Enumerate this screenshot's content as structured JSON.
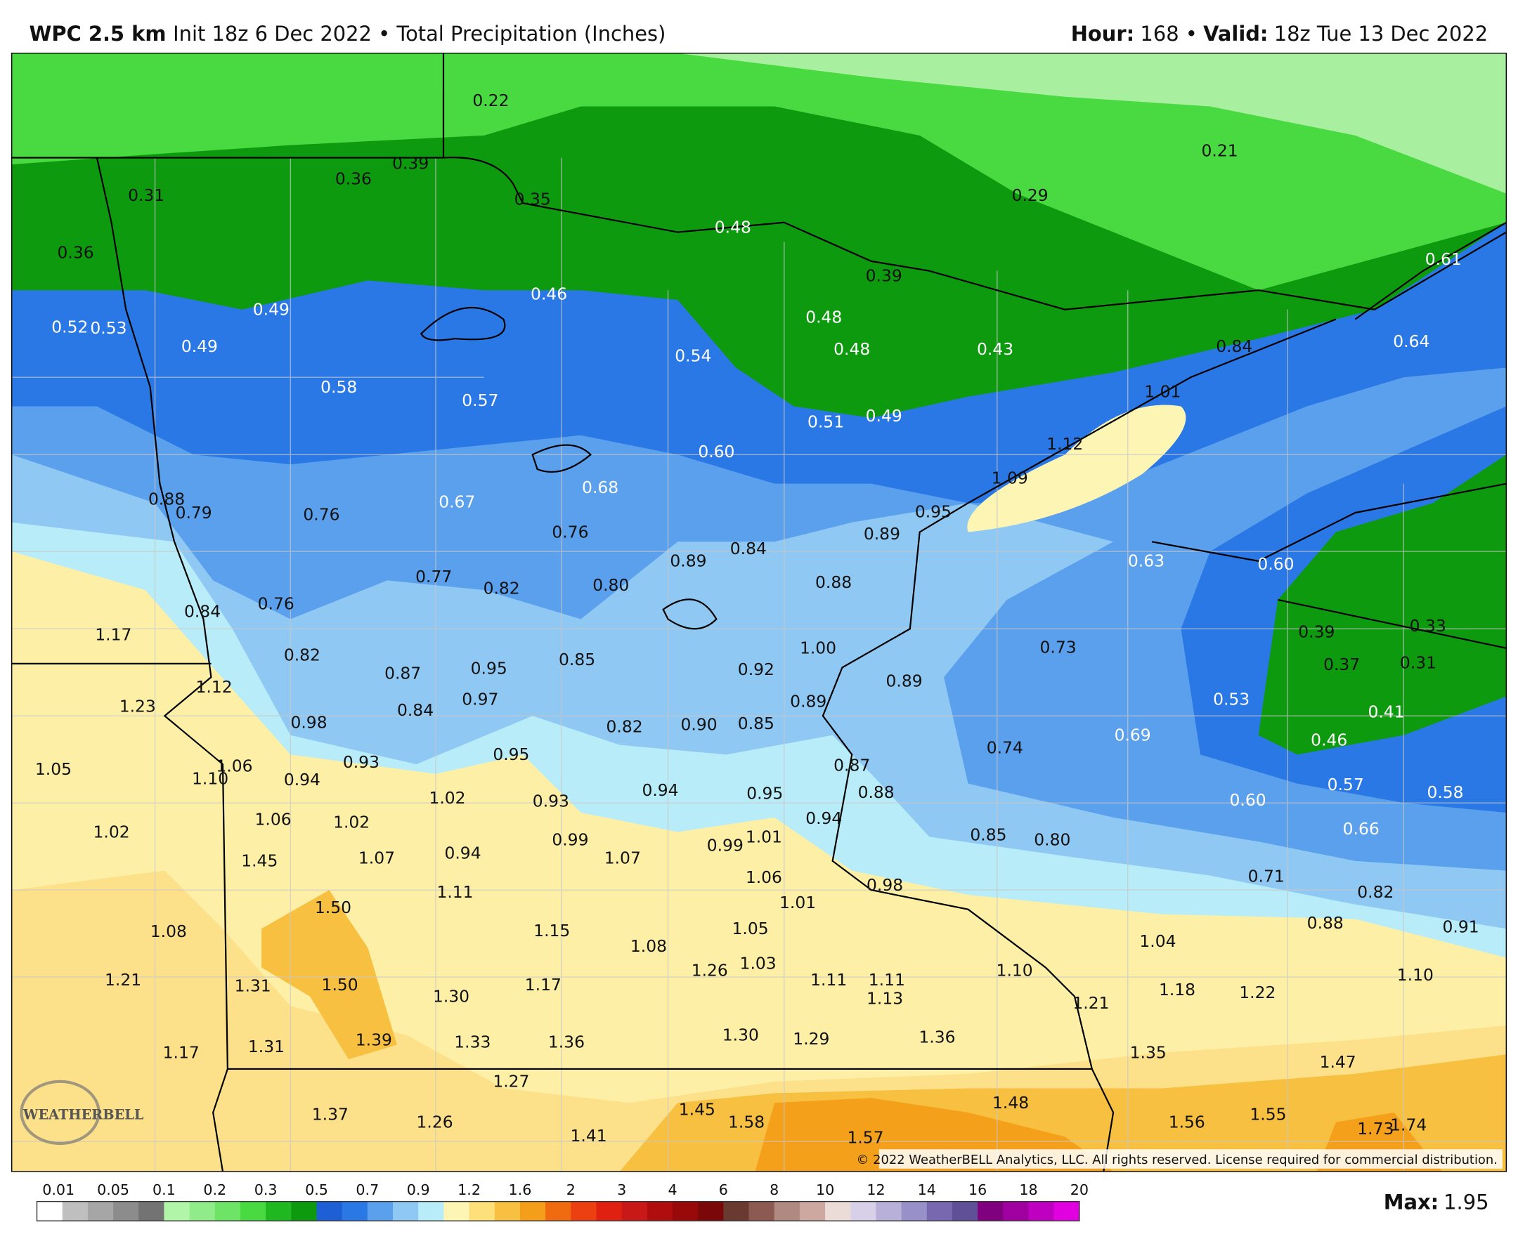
{
  "header": {
    "model": "WPC 2.5 km",
    "init": "Init 18z 6 Dec 2022 • Total Precipitation (Inches)",
    "hour_label": "Hour:",
    "hour": "168 •",
    "valid_label": "Valid:",
    "valid": "18z Tue 13 Dec 2022"
  },
  "map": {
    "labels": [
      "0.22",
      "0.39",
      "0.36",
      "0.31",
      "0.35",
      "0.36",
      "0.48",
      "0.21",
      "0.29",
      "0.39",
      "0.46",
      "0.49",
      "0.52",
      "0.53",
      "0.49",
      "0.48",
      "0.48",
      "0.43",
      "0.61",
      "0.64",
      "0.84",
      "0.54",
      "0.58",
      "0.57",
      "1.01",
      "0.51",
      "0.49",
      "0.60",
      "1.12",
      "1.09",
      "0.68",
      "0.67",
      "0.88",
      "0.79",
      "0.76",
      "0.95",
      "0.89",
      "0.76",
      "0.84",
      "0.89",
      "0.63",
      "0.60",
      "0.77",
      "0.82",
      "0.80",
      "0.88",
      "0.84",
      "0.76",
      "1.17",
      "0.39",
      "0.33",
      "1.00",
      "0.73",
      "0.37",
      "0.31",
      "0.82",
      "0.85",
      "0.87",
      "0.95",
      "0.92",
      "0.89",
      "1.12",
      "1.23",
      "0.97",
      "0.84",
      "0.89",
      "0.53",
      "0.41",
      "0.98",
      "0.82",
      "0.90",
      "0.85",
      "0.69",
      "0.74",
      "0.46",
      "1.05",
      "1.06",
      "1.10",
      "0.94",
      "0.93",
      "0.95",
      "0.87",
      "0.57",
      "0.58",
      "0.60",
      "1.02",
      "0.93",
      "0.94",
      "0.95",
      "0.88",
      "1.06",
      "1.02",
      "0.94",
      "0.66",
      "1.02",
      "0.85",
      "0.80",
      "0.99",
      "1.01",
      "0.99",
      "1.45",
      "1.07",
      "0.94",
      "1.07",
      "0.71",
      "1.06",
      "0.98",
      "0.82",
      "1.11",
      "1.01",
      "1.50",
      "1.08",
      "1.15",
      "1.05",
      "0.88",
      "0.91",
      "1.08",
      "1.04",
      "1.26",
      "1.03",
      "1.10",
      "1.21",
      "1.31",
      "1.50",
      "1.30",
      "1.17",
      "1.11",
      "1.11",
      "1.13",
      "1.18",
      "1.22",
      "1.10",
      "1.21",
      "1.39",
      "1.31",
      "1.33",
      "1.36",
      "1.30",
      "1.29",
      "1.36",
      "1.17",
      "1.35",
      "1.47",
      "1.27",
      "1.48",
      "1.45",
      "1.58",
      "1.37",
      "1.26",
      "1.41",
      "1.57",
      "1.56",
      "1.55",
      "1.73",
      "1.74"
    ],
    "copyright": "© 2022 WeatherBELL Analytics, LLC. All rights reserved. License required for commercial distribution.",
    "logo": "WEATHERBELL"
  },
  "legend": {
    "ticks": [
      0.01,
      0.05,
      0.1,
      0.2,
      0.3,
      0.5,
      0.7,
      0.9,
      1.2,
      1.6,
      2,
      3,
      4,
      6,
      8,
      10,
      12,
      14,
      16,
      18,
      20
    ],
    "colors": [
      "#ffffff",
      "#bfbfbf",
      "#a6a6a6",
      "#8c8c8c",
      "#737373",
      "#b0f5a8",
      "#90ec88",
      "#6ee466",
      "#48da40",
      "#20b820",
      "#0e9a0e",
      "#1e5fd6",
      "#2a78e6",
      "#5aa0ec",
      "#90c8f4",
      "#b8ecf8",
      "#fdf5b4",
      "#fde07a",
      "#f8c040",
      "#f59e1a",
      "#f06a10",
      "#ec4010",
      "#e02010",
      "#c81818",
      "#b00e0e",
      "#980a0a",
      "#7a0808",
      "#6a3a30",
      "#8c5a50",
      "#b08a80",
      "#cca8a0",
      "#ecdcd8",
      "#d8d0e8",
      "#b8b0d8",
      "#9890c8",
      "#7868b0",
      "#605098",
      "#800080",
      "#a000a0",
      "#c000c0",
      "#e000e0"
    ],
    "max_label": "Max:",
    "max": "1.95"
  }
}
